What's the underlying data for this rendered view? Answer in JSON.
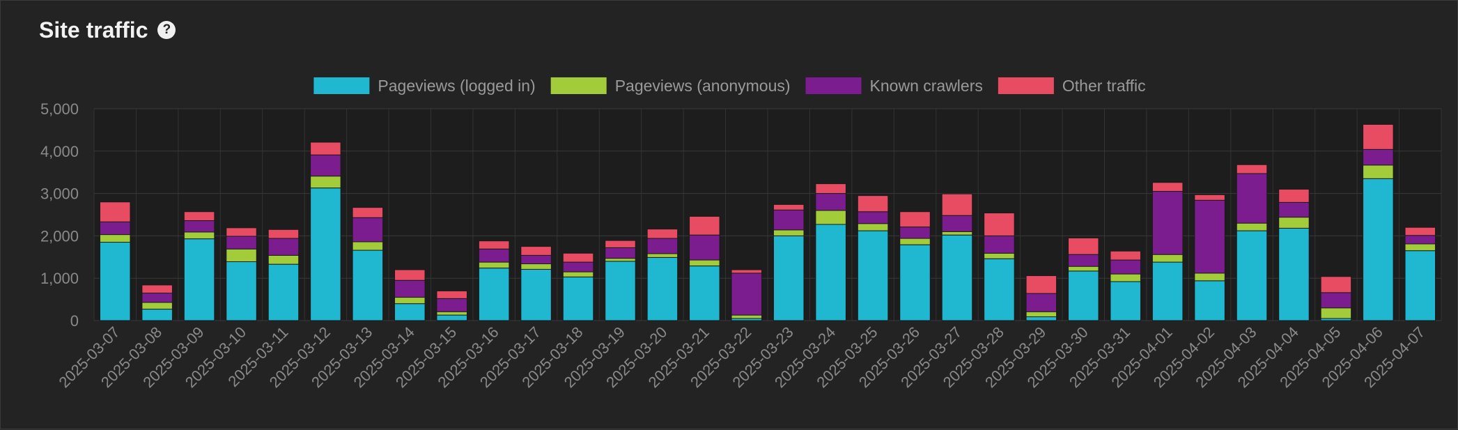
{
  "title": "Site traffic",
  "help_icon": "help-circle-icon",
  "chart_data": {
    "type": "bar",
    "stacked": true,
    "title": "Site traffic",
    "xlabel": "",
    "ylabel": "",
    "ylim": [
      0,
      5000
    ],
    "yticks": [
      0,
      1000,
      2000,
      3000,
      4000,
      5000
    ],
    "ytick_labels": [
      "0",
      "1,000",
      "2,000",
      "3,000",
      "4,000",
      "5,000"
    ],
    "grid": true,
    "legend": "top-center",
    "categories": [
      "2025-03-07",
      "2025-03-08",
      "2025-03-09",
      "2025-03-10",
      "2025-03-11",
      "2025-03-12",
      "2025-03-13",
      "2025-03-14",
      "2025-03-15",
      "2025-03-16",
      "2025-03-17",
      "2025-03-18",
      "2025-03-19",
      "2025-03-20",
      "2025-03-21",
      "2025-03-22",
      "2025-03-23",
      "2025-03-24",
      "2025-03-25",
      "2025-03-26",
      "2025-03-27",
      "2025-03-28",
      "2025-03-29",
      "2025-03-30",
      "2025-03-31",
      "2025-04-01",
      "2025-04-02",
      "2025-04-03",
      "2025-04-04",
      "2025-04-05",
      "2025-04-06",
      "2025-04-07"
    ],
    "series": [
      {
        "name": "Pageviews (logged in)",
        "color": "#1fb8d0",
        "values": [
          1850,
          270,
          1930,
          1390,
          1330,
          3130,
          1660,
          400,
          130,
          1240,
          1210,
          1030,
          1400,
          1490,
          1290,
          50,
          2000,
          2270,
          2120,
          1790,
          2020,
          1460,
          90,
          1170,
          920,
          1380,
          940,
          2120,
          2180,
          50,
          3350,
          1650
        ]
      },
      {
        "name": "Pageviews (anonymous)",
        "color": "#a3cc3b",
        "values": [
          180,
          160,
          160,
          300,
          210,
          280,
          200,
          150,
          80,
          140,
          130,
          120,
          70,
          90,
          140,
          80,
          140,
          330,
          170,
          150,
          80,
          130,
          120,
          110,
          180,
          180,
          180,
          180,
          260,
          250,
          320,
          160
        ]
      },
      {
        "name": "Known crawlers",
        "color": "#7b1d8f",
        "values": [
          300,
          220,
          270,
          300,
          400,
          500,
          570,
          400,
          310,
          310,
          200,
          230,
          250,
          360,
          590,
          990,
          470,
          400,
          280,
          270,
          380,
          410,
          430,
          280,
          330,
          1490,
          1720,
          1170,
          350,
          360,
          370,
          200
        ]
      },
      {
        "name": "Other traffic",
        "color": "#e84c62",
        "values": [
          470,
          190,
          210,
          200,
          210,
          300,
          240,
          250,
          180,
          190,
          210,
          210,
          170,
          220,
          440,
          80,
          130,
          230,
          380,
          360,
          510,
          540,
          420,
          390,
          210,
          210,
          130,
          210,
          310,
          380,
          590,
          190
        ]
      }
    ]
  }
}
